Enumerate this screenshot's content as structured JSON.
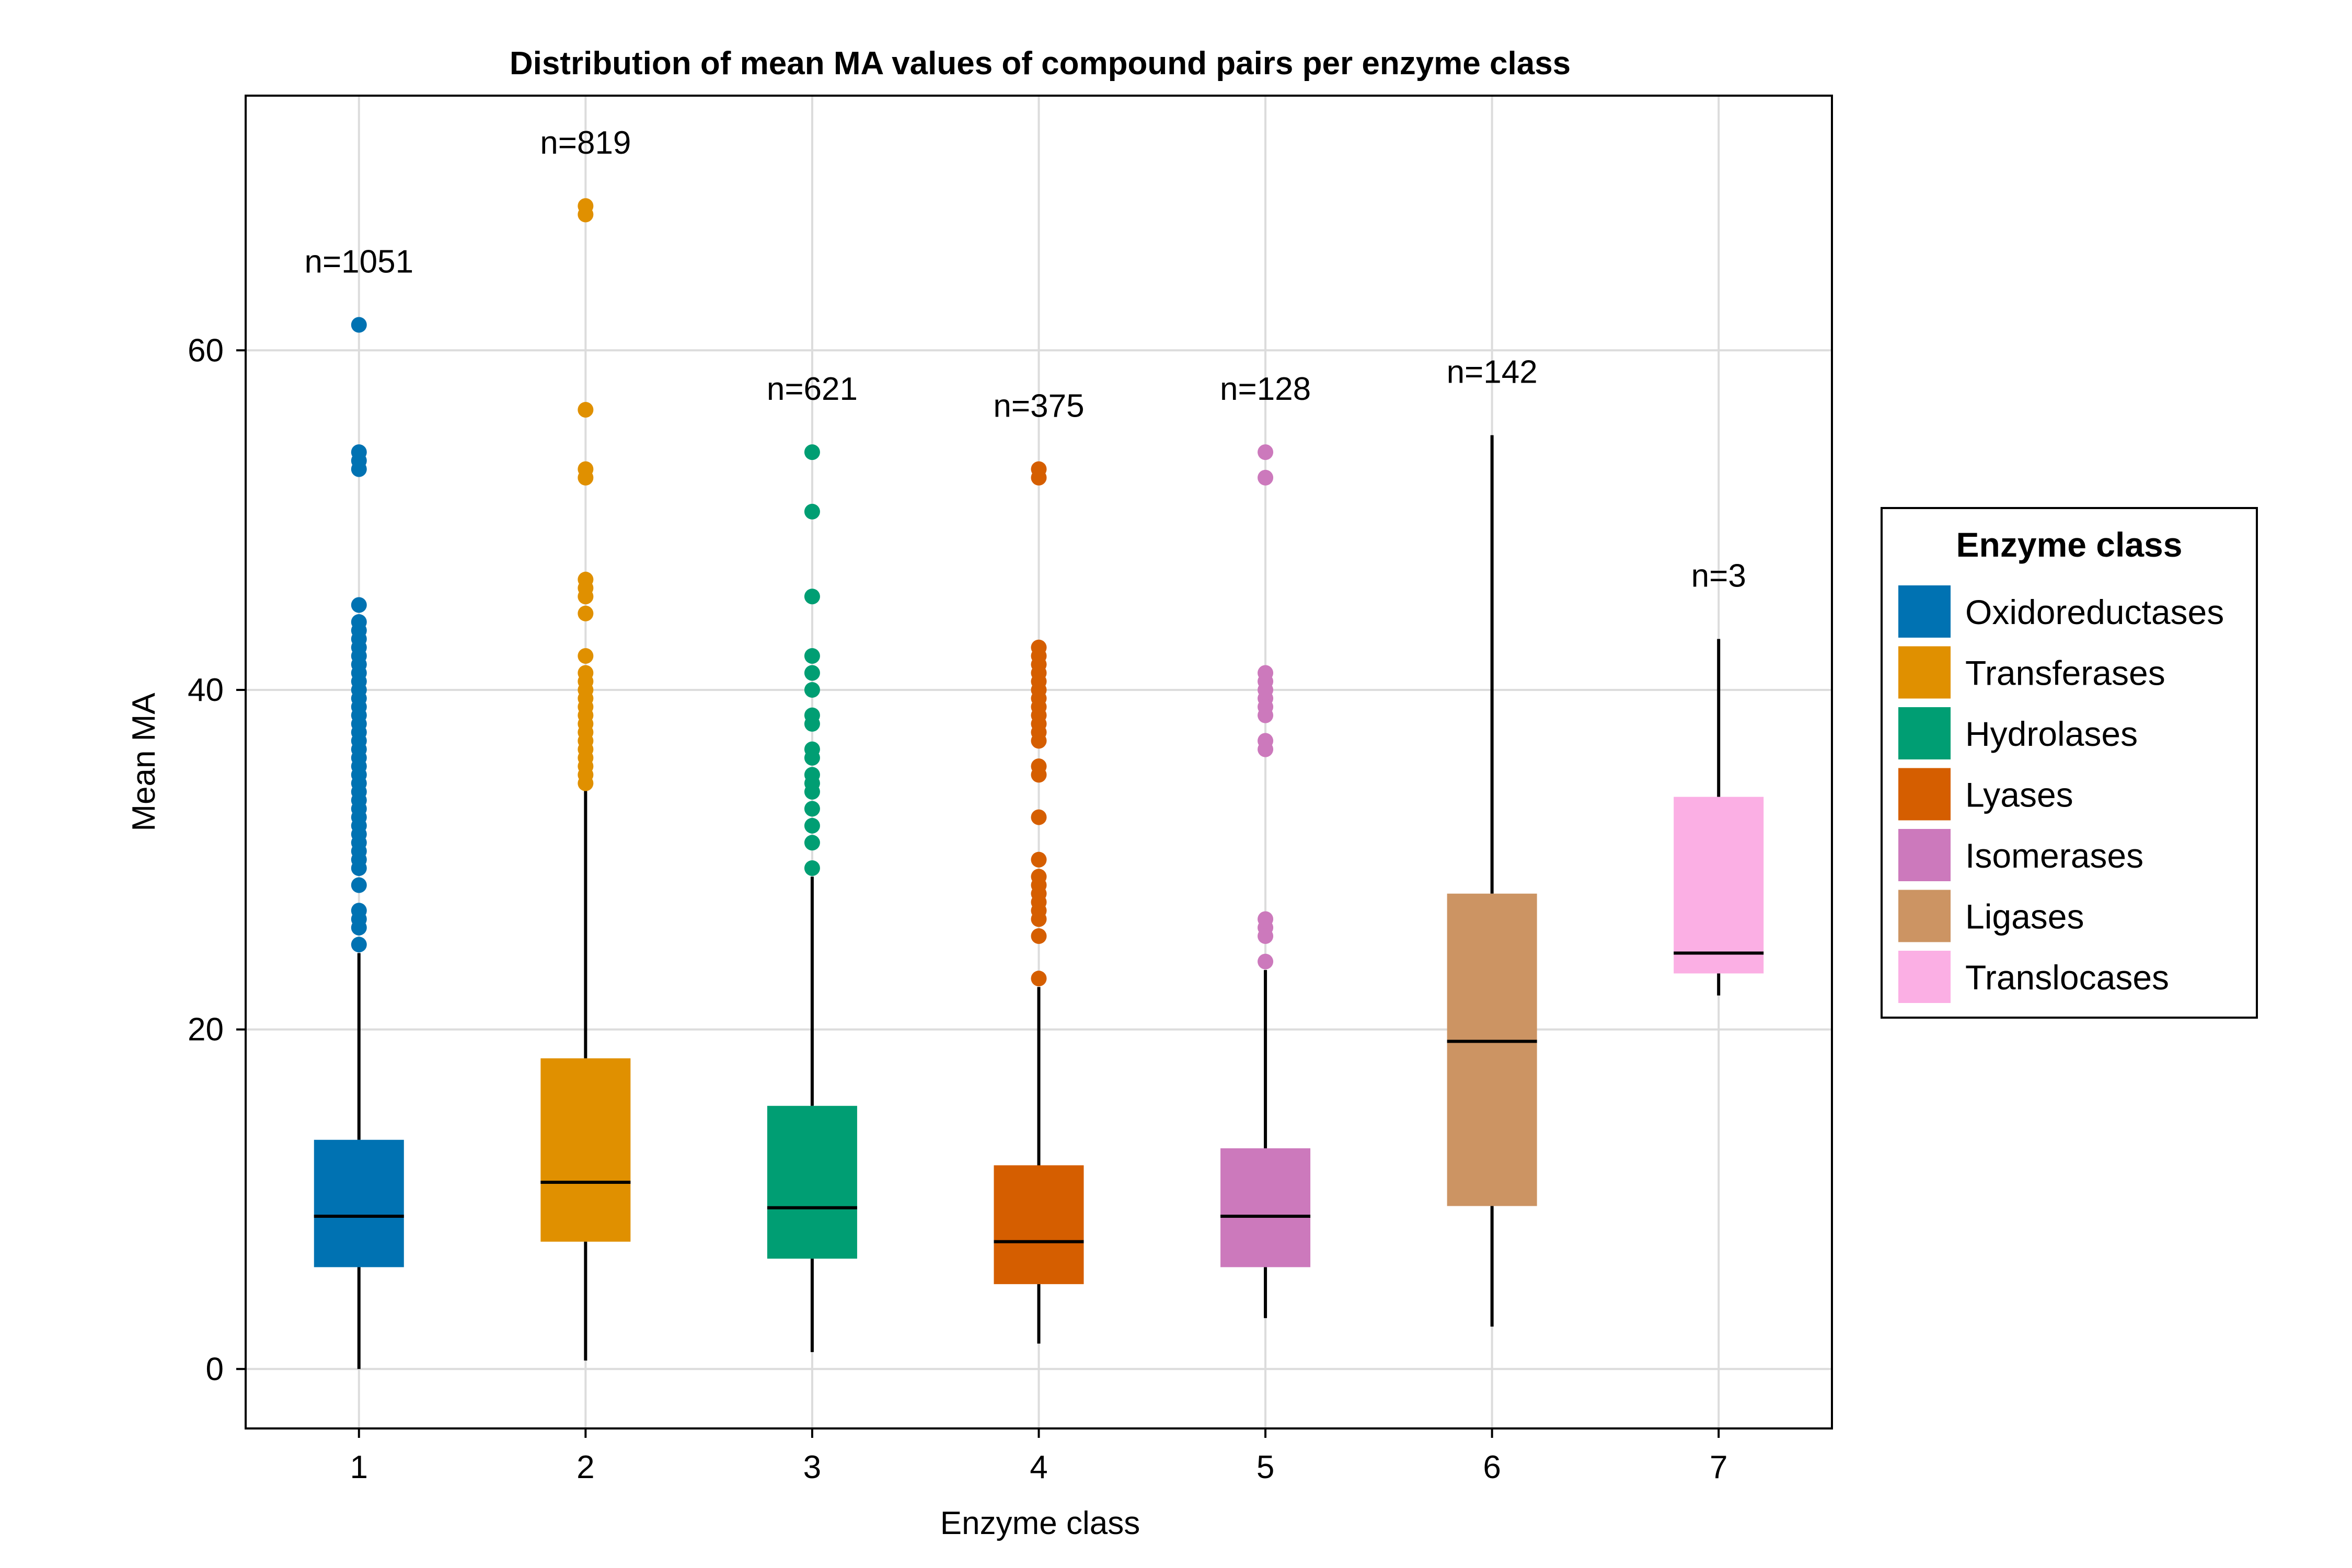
{
  "chart_data": {
    "type": "box",
    "title": "Distribution of mean MA values of compound pairs per enzyme class",
    "xlabel": "Enzyme class",
    "ylabel": "Mean MA",
    "xlim": [
      0.5,
      7.5
    ],
    "ylim": [
      -3.5,
      75
    ],
    "xticks": [
      "1",
      "2",
      "3",
      "4",
      "5",
      "6",
      "7"
    ],
    "yticks": [
      "0",
      "20",
      "40",
      "60"
    ],
    "grid": true,
    "legend": {
      "title": "Enzyme class",
      "position": "right"
    },
    "series": [
      {
        "name": "Oxidoreductases",
        "category": 1,
        "color": "#0072b2",
        "n_label": "n=1051",
        "whisker_low": 0,
        "q1": 6,
        "median": 9,
        "q3": 13.5,
        "whisker_high": 24.5,
        "outliers": [
          61.5,
          54,
          53.5,
          53,
          45,
          44,
          43.5,
          43,
          42.5,
          42,
          41.5,
          41,
          40.5,
          40,
          39.5,
          39,
          38.5,
          38,
          37.5,
          37,
          36.5,
          36,
          35.5,
          35,
          34.5,
          34,
          33.5,
          33,
          32.5,
          32,
          31.5,
          31,
          30.5,
          30,
          29.5,
          28.5,
          27,
          26.5,
          26,
          25
        ]
      },
      {
        "name": "Transferases",
        "category": 2,
        "color": "#e09000",
        "n_label": "n=819",
        "whisker_low": 0.5,
        "q1": 7.5,
        "median": 11,
        "q3": 18.3,
        "whisker_high": 34.5,
        "outliers": [
          68.5,
          68,
          56.5,
          53,
          52.5,
          46.5,
          46,
          45.5,
          44.5,
          42,
          41,
          40.5,
          40,
          39.5,
          39,
          38.5,
          38,
          37.5,
          37,
          36.5,
          36,
          35.5,
          35,
          34.5
        ]
      },
      {
        "name": "Hydrolases",
        "category": 3,
        "color": "#009e73",
        "n_label": "n=621",
        "whisker_low": 1,
        "q1": 6.5,
        "median": 9.5,
        "q3": 15.5,
        "whisker_high": 29,
        "outliers": [
          54,
          50.5,
          45.5,
          42,
          41,
          40,
          38.5,
          38,
          36.5,
          36,
          35,
          34.5,
          34,
          33,
          32,
          31,
          29.5
        ]
      },
      {
        "name": "Lyases",
        "category": 4,
        "color": "#d55e00",
        "n_label": "n=375",
        "whisker_low": 1.5,
        "q1": 5,
        "median": 7.5,
        "q3": 12,
        "whisker_high": 22.5,
        "outliers": [
          53,
          52.5,
          42.5,
          42,
          41.5,
          41,
          40.5,
          40,
          39.5,
          39,
          38.5,
          38,
          37.5,
          37,
          35.5,
          35,
          32.5,
          30,
          29,
          28.5,
          28,
          27.5,
          27,
          26.5,
          25.5,
          23
        ]
      },
      {
        "name": "Isomerases",
        "category": 5,
        "color": "#cc79bc",
        "n_label": "n=128",
        "whisker_low": 3,
        "q1": 6,
        "median": 9,
        "q3": 13,
        "whisker_high": 23.5,
        "outliers": [
          54,
          52.5,
          41,
          40.5,
          40,
          39.5,
          39,
          38.5,
          37,
          36.5,
          26.5,
          26,
          25.5,
          24
        ]
      },
      {
        "name": "Ligases",
        "category": 6,
        "color": "#cc9463",
        "n_label": "n=142",
        "whisker_low": 2.5,
        "q1": 9.6,
        "median": 19.3,
        "q3": 28,
        "whisker_high": 55,
        "outliers": []
      },
      {
        "name": "Translocases",
        "category": 7,
        "color": "#fbafe4",
        "n_label": "n=3",
        "whisker_low": 22,
        "q1": 23.3,
        "median": 24.5,
        "q3": 33.7,
        "whisker_high": 43,
        "outliers": []
      }
    ]
  }
}
